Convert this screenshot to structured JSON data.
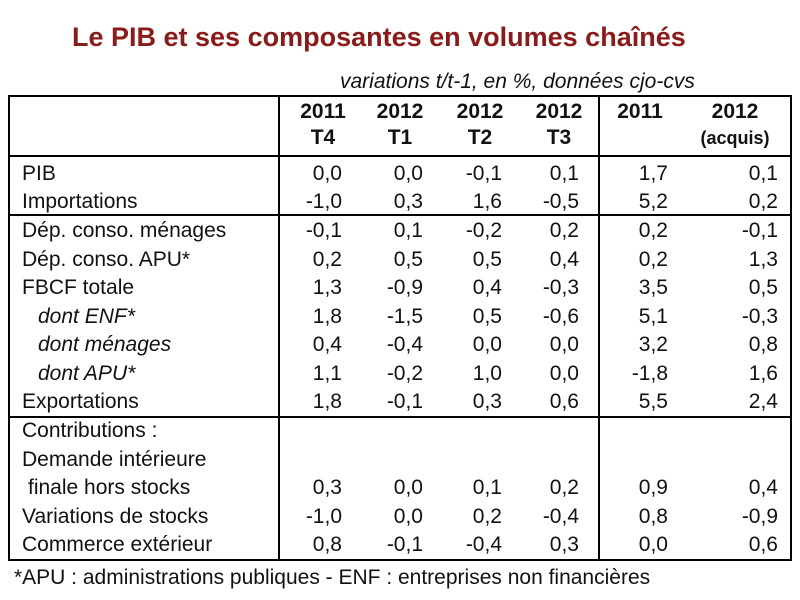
{
  "title": "Le PIB et ses composantes en volumes chaînés",
  "subtitle": "variations t/t-1, en %, données cjo-cvs",
  "footnote": "*APU : administrations publiques - ENF : entreprises non financières",
  "chart_data": {
    "type": "table",
    "columns": [
      {
        "line1": "2011",
        "line2": "T4"
      },
      {
        "line1": "2012",
        "line2": "T1"
      },
      {
        "line1": "2012",
        "line2": "T2"
      },
      {
        "line1": "2012",
        "line2": "T3"
      },
      {
        "line1": "2011",
        "line2": ""
      },
      {
        "line1": "2012",
        "line2": "(acquis)"
      }
    ],
    "rows": [
      {
        "label": "PIB",
        "values": [
          "0,0",
          "0,0",
          "-0,1",
          "0,1",
          "1,7",
          "0,1"
        ]
      },
      {
        "label": "Importations",
        "values": [
          "-1,0",
          "0,3",
          "1,6",
          "-0,5",
          "5,2",
          "0,2"
        ]
      },
      {
        "label": "Dép. conso. ménages",
        "values": [
          "-0,1",
          "0,1",
          "-0,2",
          "0,2",
          "0,2",
          "-0,1"
        ]
      },
      {
        "label": "Dép. conso. APU*",
        "values": [
          "0,2",
          "0,5",
          "0,5",
          "0,4",
          "0,2",
          "1,3"
        ]
      },
      {
        "label": "FBCF totale",
        "values": [
          "1,3",
          "-0,9",
          "0,4",
          "-0,3",
          "3,5",
          "0,5"
        ]
      },
      {
        "label": "dont ENF*",
        "values": [
          "1,8",
          "-1,5",
          "0,5",
          "-0,6",
          "5,1",
          "-0,3"
        ]
      },
      {
        "label": "dont ménages",
        "values": [
          "0,4",
          "-0,4",
          "0,0",
          "0,0",
          "3,2",
          "0,8"
        ]
      },
      {
        "label": "dont APU*",
        "values": [
          "1,1",
          "-0,2",
          "1,0",
          "0,0",
          "-1,8",
          "1,6"
        ]
      },
      {
        "label": "Exportations",
        "values": [
          "1,8",
          "-0,1",
          "0,3",
          "0,6",
          "5,5",
          "2,4"
        ]
      },
      {
        "label": "Contributions :",
        "values": [
          "",
          "",
          "",
          "",
          "",
          ""
        ]
      },
      {
        "label": "Demande intérieure",
        "values": [
          "",
          "",
          "",
          "",
          "",
          ""
        ]
      },
      {
        "label": "finale hors stocks",
        "values": [
          "0,3",
          "0,0",
          "0,1",
          "0,2",
          "0,9",
          "0,4"
        ]
      },
      {
        "label": "Variations de stocks",
        "values": [
          "-1,0",
          "0,0",
          "0,2",
          "-0,4",
          "0,8",
          "-0,9"
        ]
      },
      {
        "label": "Commerce extérieur",
        "values": [
          "0,8",
          "-0,1",
          "-0,4",
          "0,3",
          "0,0",
          "0,6"
        ]
      }
    ]
  }
}
